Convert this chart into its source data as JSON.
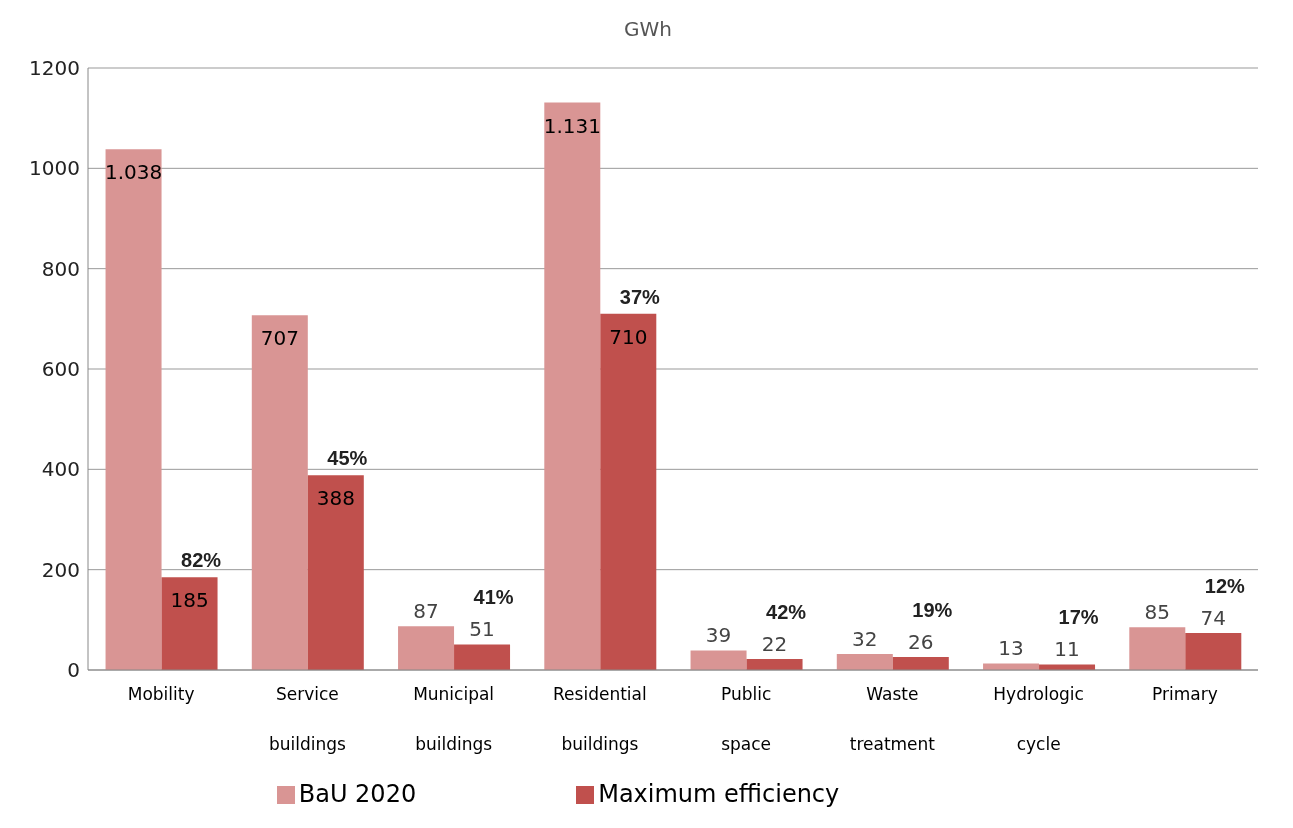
{
  "chart_data": {
    "type": "bar",
    "title": "GWh",
    "categories": [
      "Mobility",
      "Service buildings",
      "Municipal buildings",
      "Residential buildings",
      "Public space",
      "Waste treatment",
      "Hydrologic cycle",
      "Primary"
    ],
    "series": [
      {
        "name": "BaU 2020",
        "color": "#d99594",
        "values": [
          1038,
          707,
          87,
          1131,
          39,
          32,
          13,
          85
        ],
        "value_labels": [
          "1.038",
          "707",
          "87",
          "1.131",
          "39",
          "32",
          "13",
          "85"
        ]
      },
      {
        "name": "Maximum efficiency",
        "color": "#c0504d",
        "values": [
          185,
          388,
          51,
          710,
          22,
          26,
          11,
          74
        ],
        "value_labels": [
          "185",
          "388",
          "51",
          "710",
          "22",
          "26",
          "11",
          "74"
        ]
      }
    ],
    "annotations": [
      {
        "text": "82%",
        "x": "Mobility",
        "y": 185
      },
      {
        "text": "45%",
        "x": "Service buildings",
        "y": 388
      },
      {
        "text": "41%",
        "x": "Municipal buildings",
        "y": 51
      },
      {
        "text": "37%",
        "x": "Residential buildings",
        "y": 710
      },
      {
        "text": "42%",
        "x": "Public space",
        "y": 22
      },
      {
        "text": "19%",
        "x": "Waste treatment",
        "y": 26
      },
      {
        "text": "17%",
        "x": "Hydrologic cycle",
        "y": 11
      },
      {
        "text": "12%",
        "x": "Primary",
        "y": 74
      }
    ],
    "ylim": [
      0,
      1200
    ],
    "yticks": [
      0,
      200,
      400,
      600,
      800,
      1000,
      1200
    ],
    "grid": "y",
    "legend": "bottom"
  }
}
